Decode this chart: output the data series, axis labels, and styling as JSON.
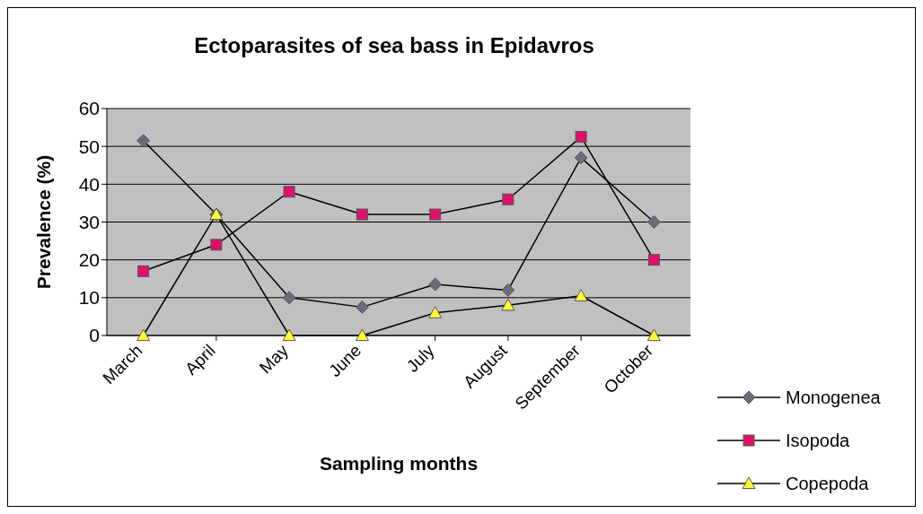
{
  "chart_data": {
    "type": "line",
    "title": "Ectoparasites of sea bass in Epidavros",
    "xlabel": "Sampling months",
    "ylabel": "Prevalence (%)",
    "categories": [
      "March",
      "April",
      "May",
      "June",
      "July",
      "August",
      "September",
      "October"
    ],
    "series": [
      {
        "name": "Monogenea",
        "color": "#6b6b7b",
        "marker": "diamond",
        "values": [
          51.5,
          32,
          10,
          7.5,
          13.5,
          12,
          47,
          30
        ]
      },
      {
        "name": "Isopoda",
        "color": "#e0106a",
        "marker": "square",
        "values": [
          17,
          24,
          38,
          32,
          32,
          36,
          52.5,
          20
        ]
      },
      {
        "name": "Copepoda",
        "color": "#ffff33",
        "marker": "triangle",
        "values": [
          0,
          32,
          0,
          0,
          6,
          8,
          10.5,
          0
        ]
      }
    ],
    "ylim": [
      0,
      60
    ],
    "yticks": [
      0,
      10,
      20,
      30,
      40,
      50,
      60
    ],
    "grid": "y",
    "legend": "right",
    "line_style": "solid"
  }
}
